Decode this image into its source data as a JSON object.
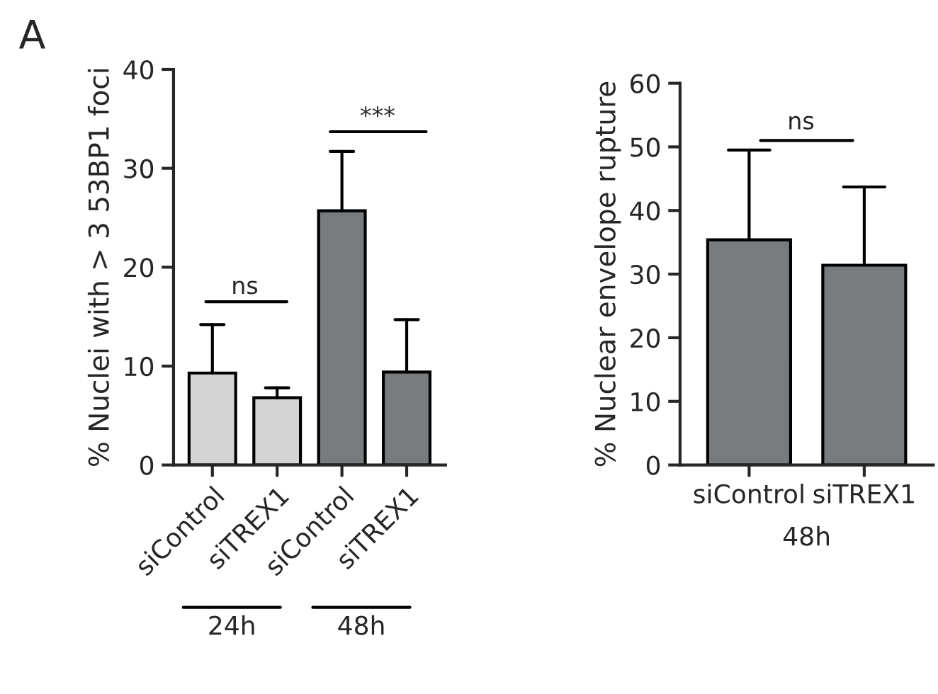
{
  "chart_data": [
    {
      "type": "bar",
      "ylabel": "% Nuclei with > 3 53BP1 foci",
      "categories": [
        "siControl",
        "siTREX1",
        "siControl",
        "siTREX1"
      ],
      "values": [
        9.3,
        6.8,
        25.7,
        9.4
      ],
      "colors": [
        "#d4d4d4",
        "#d4d4d4",
        "#777b7e",
        "#777b7e"
      ],
      "errors": [
        [
          9.3,
          14.2
        ],
        [
          6.8,
          7.8
        ],
        [
          25.7,
          31.7
        ],
        [
          9.4,
          14.7
        ]
      ],
      "ylim": [
        0,
        40
      ],
      "yticks": [
        0,
        10,
        20,
        30,
        40
      ],
      "grid": false,
      "annotations": [
        "A",
        "ns",
        "***",
        "24h",
        "48h"
      ]
    },
    {
      "type": "bar",
      "ylabel": "% Nuclear envelope rupture",
      "categories": [
        "siControl",
        "siTREX1"
      ],
      "values": [
        35.4,
        31.4
      ],
      "colors": [
        "#777b7e",
        "#777b7e"
      ],
      "errors": [
        [
          35.4,
          49.5
        ],
        [
          31.4,
          43.7
        ]
      ],
      "ylim": [
        0,
        60
      ],
      "yticks": [
        0,
        10,
        20,
        30,
        40,
        50,
        60
      ],
      "grid": false,
      "annotations": [
        "ns",
        "48h"
      ]
    }
  ]
}
